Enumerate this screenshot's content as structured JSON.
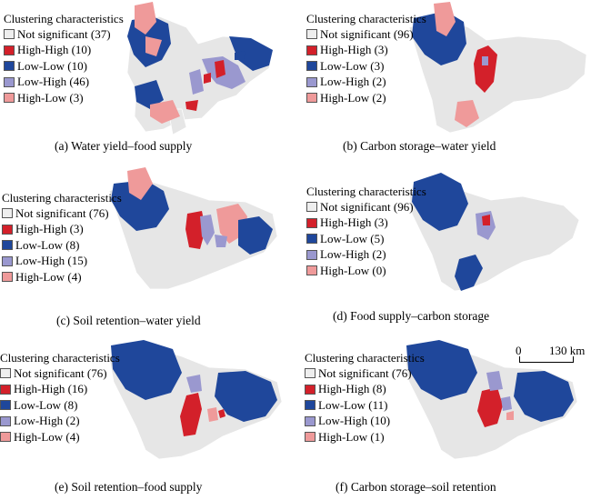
{
  "legend_title": "Clustering characteristics",
  "colors": {
    "not_significant": "#eeeeee",
    "high_high": "#d3202a",
    "low_low": "#1f479b",
    "low_high": "#9a98cf",
    "high_low": "#ef9a9a",
    "background": "#e6e6e6"
  },
  "panels": [
    {
      "id": "a",
      "caption": "(a) Water yield–food supply",
      "legend": [
        {
          "label": "Not significant (37)",
          "cls": "not_significant"
        },
        {
          "label": "High-High (10)",
          "cls": "high_high"
        },
        {
          "label": "Low-Low (10)",
          "cls": "low_low"
        },
        {
          "label": "Low-High (46)",
          "cls": "low_high"
        },
        {
          "label": "High-Low (3)",
          "cls": "high_low"
        }
      ]
    },
    {
      "id": "b",
      "caption": "(b) Carbon storage–water yield",
      "legend": [
        {
          "label": "Not significant (96)",
          "cls": "not_significant"
        },
        {
          "label": "High-High (3)",
          "cls": "high_high"
        },
        {
          "label": "Low-Low (3)",
          "cls": "low_low"
        },
        {
          "label": "Low-High (2)",
          "cls": "low_high"
        },
        {
          "label": "High-Low (2)",
          "cls": "high_low"
        }
      ]
    },
    {
      "id": "c",
      "caption": "(c) Soil retention–water yield",
      "legend": [
        {
          "label": "Not significant (76)",
          "cls": "not_significant"
        },
        {
          "label": "High-High (3)",
          "cls": "high_high"
        },
        {
          "label": "Low-Low (8)",
          "cls": "low_low"
        },
        {
          "label": "Low-High (15)",
          "cls": "low_high"
        },
        {
          "label": "High-Low (4)",
          "cls": "high_low"
        }
      ]
    },
    {
      "id": "d",
      "caption": "(d) Food supply–carbon storage",
      "legend": [
        {
          "label": "Not significant (96)",
          "cls": "not_significant"
        },
        {
          "label": "High-High (3)",
          "cls": "high_high"
        },
        {
          "label": "Low-Low (5)",
          "cls": "low_low"
        },
        {
          "label": "Low-High (2)",
          "cls": "low_high"
        },
        {
          "label": "High-Low (0)",
          "cls": "high_low"
        }
      ]
    },
    {
      "id": "e",
      "caption": "(e) Soil retention–food supply",
      "legend": [
        {
          "label": "Not significant (76)",
          "cls": "not_significant"
        },
        {
          "label": "High-High (16)",
          "cls": "high_high"
        },
        {
          "label": "Low-Low (8)",
          "cls": "low_low"
        },
        {
          "label": "Low-High (2)",
          "cls": "low_high"
        },
        {
          "label": "High-Low (4)",
          "cls": "high_low"
        }
      ]
    },
    {
      "id": "f",
      "caption": "(f) Carbon storage–soil retention",
      "legend": [
        {
          "label": "Not significant (76)",
          "cls": "not_significant"
        },
        {
          "label": "High-High (8)",
          "cls": "high_high"
        },
        {
          "label": "Low-Low (11)",
          "cls": "low_low"
        },
        {
          "label": "Low-High (10)",
          "cls": "low_high"
        },
        {
          "label": "High-Low (1)",
          "cls": "high_low"
        }
      ]
    }
  ],
  "scale": {
    "start": "0",
    "end": "130 km"
  }
}
